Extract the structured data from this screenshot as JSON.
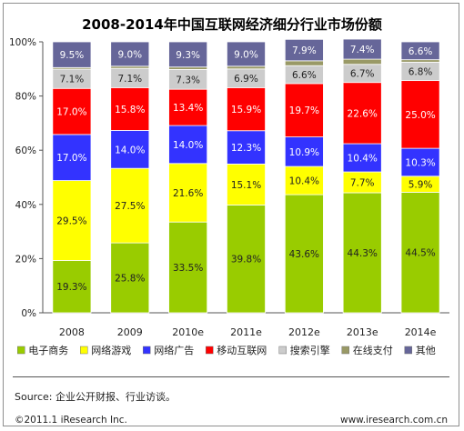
{
  "chart_data": {
    "type": "bar",
    "stacked": true,
    "title": "2008-2014年中国互联网经济细分行业市场份额",
    "categories": [
      "2008",
      "2009",
      "2010e",
      "2011e",
      "2012e",
      "2013e",
      "2014e"
    ],
    "ylim": [
      0,
      100
    ],
    "yticks": [
      "0%",
      "20%",
      "40%",
      "60%",
      "80%",
      "100%"
    ],
    "legend_position": "bottom",
    "series": [
      {
        "name": "电子商务",
        "color": "#99cc00",
        "values": [
          19.3,
          25.8,
          33.5,
          39.8,
          43.6,
          44.3,
          44.5
        ],
        "labels": [
          "19.3%",
          "25.8%",
          "33.5%",
          "39.8%",
          "43.6%",
          "44.3%",
          "44.5%"
        ]
      },
      {
        "name": "网络游戏",
        "color": "#ffff00",
        "values": [
          29.5,
          27.5,
          21.6,
          15.1,
          10.4,
          7.7,
          5.9
        ],
        "labels": [
          "29.5%",
          "27.5%",
          "21.6%",
          "15.1%",
          "10.4%",
          "7.7%",
          "5.9%"
        ]
      },
      {
        "name": "网络广告",
        "color": "#3333ff",
        "values": [
          17.0,
          14.0,
          14.0,
          12.3,
          10.9,
          10.4,
          10.3
        ],
        "labels": [
          "17.0%",
          "14.0%",
          "14.0%",
          "12.3%",
          "10.9%",
          "10.4%",
          "10.3%"
        ]
      },
      {
        "name": "移动互联网",
        "color": "#ff0000",
        "values": [
          17.0,
          15.8,
          13.4,
          15.9,
          19.7,
          22.6,
          25.0
        ],
        "labels": [
          "17.0%",
          "15.8%",
          "13.4%",
          "15.9%",
          "19.7%",
          "22.6%",
          "25.0%"
        ]
      },
      {
        "name": "搜索引擎",
        "color": "#cccccc",
        "values": [
          7.1,
          7.1,
          7.3,
          6.9,
          6.6,
          6.7,
          6.8
        ],
        "labels": [
          "7.1%",
          "7.1%",
          "7.3%",
          "6.9%",
          "6.6%",
          "6.7%",
          "6.8%"
        ]
      },
      {
        "name": "在线支付",
        "color": "#999966",
        "values": [
          0.6,
          0.8,
          0.9,
          1.0,
          1.8,
          1.9,
          0.9
        ],
        "labels": [
          "",
          "",
          "",
          "",
          "",
          "",
          ""
        ]
      },
      {
        "name": "其他",
        "color": "#666699",
        "values": [
          9.5,
          9.0,
          9.3,
          9.0,
          7.9,
          7.4,
          6.6
        ],
        "labels": [
          "9.5%",
          "9.0%",
          "9.3%",
          "9.0%",
          "7.9%",
          "7.4%",
          "6.6%"
        ]
      }
    ]
  },
  "source_text": "Source: 企业公开财报、行业访谈。",
  "copyright_text": "©2011.1 iResearch Inc.",
  "website_text": "www.iresearch.com.cn"
}
